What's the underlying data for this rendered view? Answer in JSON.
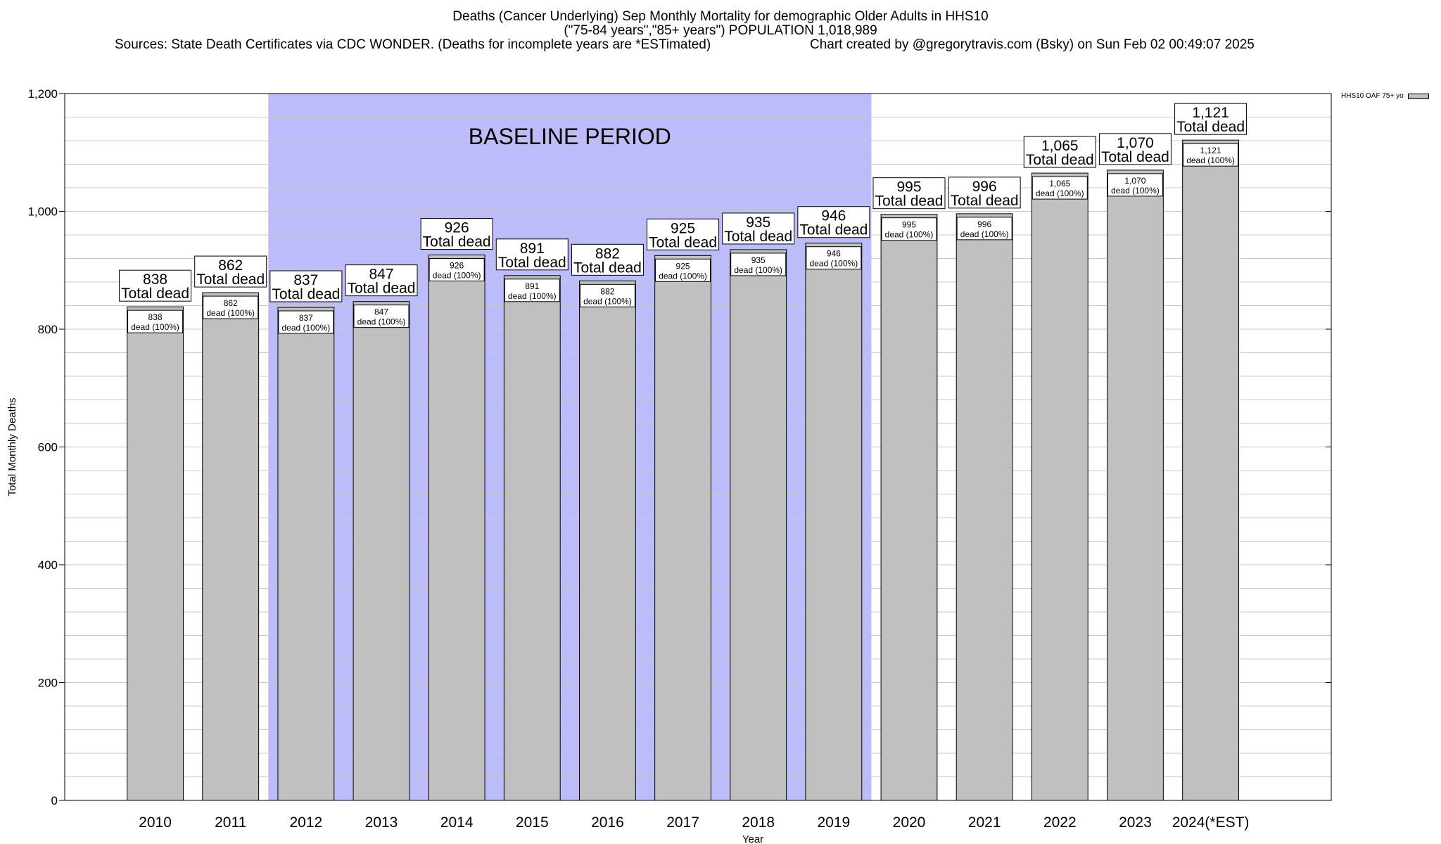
{
  "header": {
    "title_line1": "Deaths (Cancer Underlying) Sep Monthly Mortality for demographic Older Adults in HHS10",
    "title_line2": "(\"75-84 years\",\"85+ years\") POPULATION 1,018,989",
    "sources": "Sources: State Death Certificates via CDC WONDER. (Deaths for incomplete years are *ESTimated)",
    "credit": "Chart created by @gregorytravis.com (Bsky) on Sun Feb 02 00:49:07 2025"
  },
  "colors": {
    "bar_fill": "#c0c0c0",
    "baseline_shade": "#bcbcfb",
    "grid": "#c8c8c8"
  },
  "chart_data": {
    "type": "bar",
    "categories": [
      "2010",
      "2011",
      "2012",
      "2013",
      "2014",
      "2015",
      "2016",
      "2017",
      "2018",
      "2019",
      "2020",
      "2021",
      "2022",
      "2023",
      "2024(*EST)"
    ],
    "series": [
      {
        "name": "HHS10 OAF 75+ yo",
        "values": [
          838,
          862,
          837,
          847,
          926,
          891,
          882,
          925,
          935,
          946,
          995,
          996,
          1065,
          1070,
          1121
        ]
      }
    ],
    "value_labels": [
      "838",
      "862",
      "837",
      "847",
      "926",
      "891",
      "882",
      "925",
      "935",
      "946",
      "995",
      "996",
      "1,065",
      "1,070",
      "1,121"
    ],
    "total_label_text": "Total dead",
    "inner_label_text": "dead (100%)",
    "xlabel": "Year",
    "ylabel": "Total Monthly Deaths",
    "ylim": [
      0,
      1200
    ],
    "yticks": [
      0,
      200,
      400,
      600,
      800,
      1000,
      1200
    ],
    "ytick_labels": [
      "0",
      "200",
      "400",
      "600",
      "800",
      "1,000",
      "1,200"
    ],
    "minor_grid_step": 40,
    "grid": true,
    "legend_position": "top-right",
    "annotation": {
      "text": "BASELINE PERIOD",
      "start": "2012",
      "end": "2019"
    }
  }
}
